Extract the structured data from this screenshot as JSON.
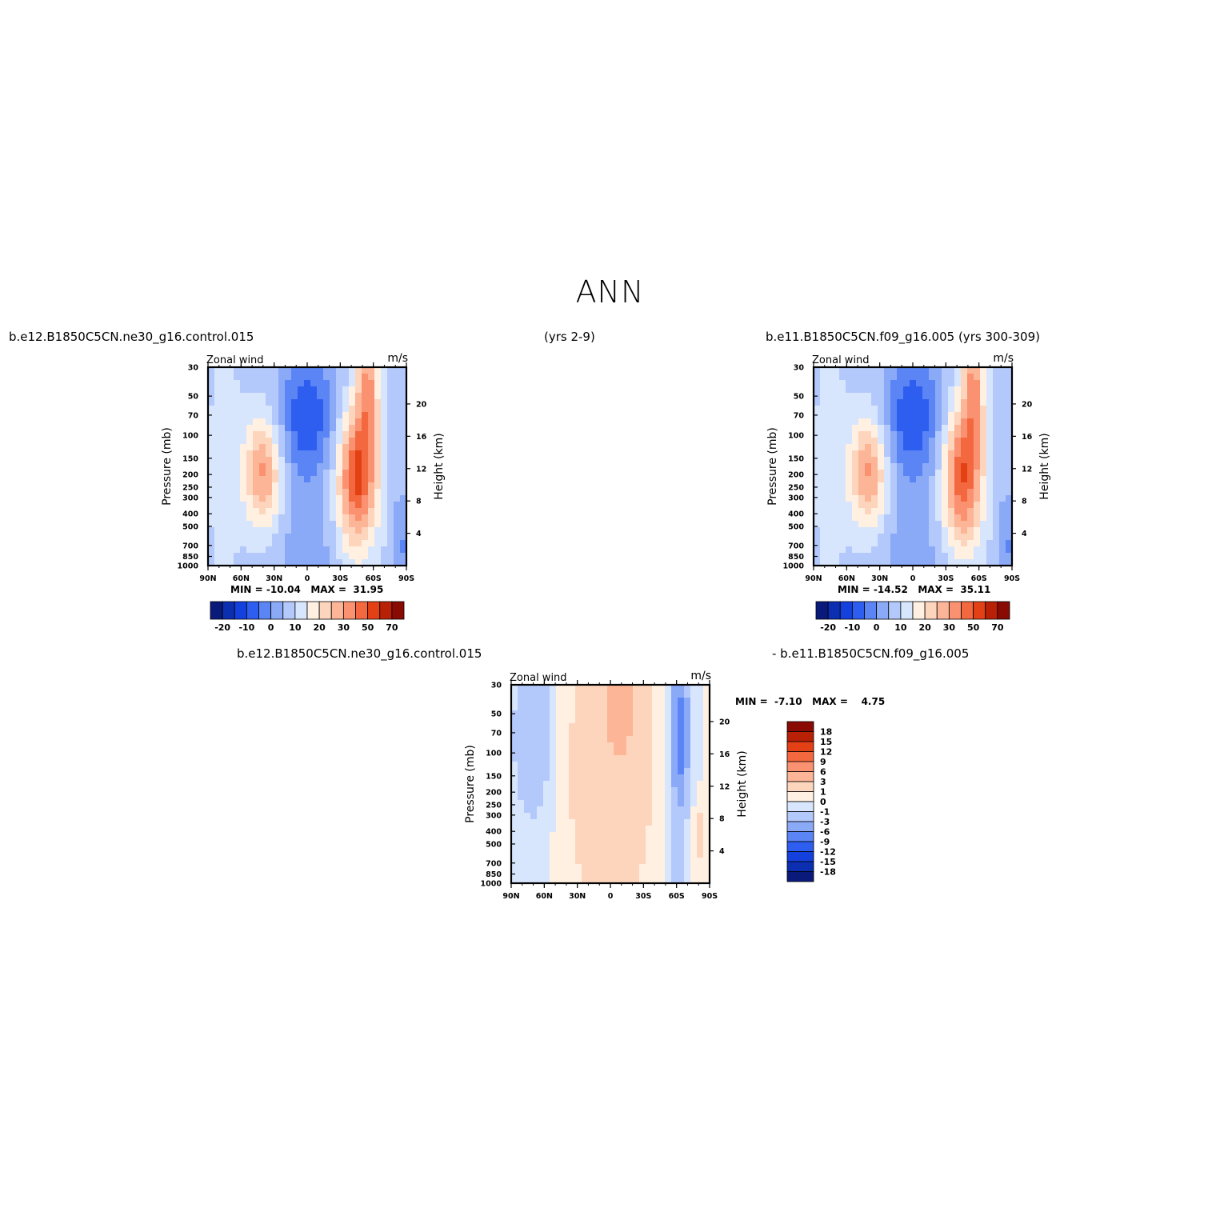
{
  "title": "ANN",
  "captions": {
    "top_left_case": "b.e12.B1850C5CN.ne30_g16.control.015",
    "top_left_years": "(yrs 2-9)",
    "top_right": "b.e11.B1850C5CN.f09_g16.005 (yrs 300-309)",
    "diff_left": "b.e12.B1850C5CN.ne30_g16.control.015",
    "diff_right": "- b.e11.B1850C5CN.f09_g16.005"
  },
  "chart_data": [
    {
      "type": "heatmap",
      "panel": "test",
      "title_left": "Zonal wind",
      "title_right": "m/s",
      "ylabel": "Pressure (mb)",
      "ylabel_right": "Height (km)",
      "x": [
        "90N",
        "60N",
        "30N",
        "0",
        "30S",
        "60S",
        "90S"
      ],
      "y_pressure": [
        30,
        50,
        70,
        100,
        150,
        200,
        250,
        300,
        400,
        500,
        700,
        850,
        1000
      ],
      "y_height": [
        4,
        8,
        12,
        16,
        20
      ],
      "ylog": true,
      "min": "-10.04",
      "max": "31.95",
      "stats_text": "MIN = -10.04   MAX =  31.95",
      "colorbar_labels": [
        "-20",
        "-10",
        "0",
        "10",
        "20",
        "30",
        "50",
        "70"
      ]
    },
    {
      "type": "heatmap",
      "panel": "control",
      "title_left": "Zonal wind",
      "title_right": "m/s",
      "ylabel": "Pressure (mb)",
      "ylabel_right": "Height (km)",
      "x": [
        "90N",
        "60N",
        "30N",
        "0",
        "30S",
        "60S",
        "90S"
      ],
      "y_pressure": [
        30,
        50,
        70,
        100,
        150,
        200,
        250,
        300,
        400,
        500,
        700,
        850,
        1000
      ],
      "y_height": [
        4,
        8,
        12,
        16,
        20
      ],
      "ylog": true,
      "min": "-14.52",
      "max": "35.11",
      "stats_text": "MIN = -14.52   MAX =  35.11",
      "colorbar_labels": [
        "-20",
        "-10",
        "0",
        "10",
        "20",
        "30",
        "50",
        "70"
      ]
    },
    {
      "type": "heatmap",
      "panel": "difference",
      "title_left": "Zonal wind",
      "title_right": "m/s",
      "ylabel": "Pressure (mb)",
      "ylabel_right": "Height (km)",
      "x": [
        "90N",
        "60N",
        "30N",
        "0",
        "30S",
        "60S",
        "90S"
      ],
      "y_pressure": [
        30,
        50,
        70,
        100,
        150,
        200,
        250,
        300,
        400,
        500,
        700,
        850,
        1000
      ],
      "y_height": [
        4,
        8,
        12,
        16,
        20
      ],
      "ylog": true,
      "min": "-7.10",
      "max": "4.75",
      "stats_text": "MIN =  -7.10   MAX =    4.75",
      "colorbar_labels": [
        "18",
        "15",
        "12",
        "9",
        "6",
        "3",
        "1",
        "0",
        "-1",
        "-3",
        "-6",
        "-9",
        "-12",
        "-15",
        "-18"
      ]
    }
  ],
  "colors": {
    "scale": [
      "#0a1a7a",
      "#0b2fb0",
      "#1440dd",
      "#2d5ef0",
      "#5b85f5",
      "#8aaaf8",
      "#b4c9fb",
      "#d8e6fd",
      "#fff0e1",
      "#fdd5bd",
      "#fcb597",
      "#fa9271",
      "#f4683f",
      "#e34016",
      "#b82106",
      "#8a0a04"
    ]
  }
}
